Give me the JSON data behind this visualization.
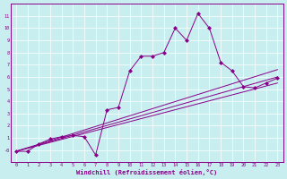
{
  "xlabel": "Windchill (Refroidissement éolien,°C)",
  "background_color": "#c8eef0",
  "line_color": "#880088",
  "x_data": [
    0,
    1,
    2,
    3,
    4,
    5,
    6,
    7,
    8,
    9,
    10,
    11,
    12,
    13,
    14,
    15,
    16,
    17,
    18,
    19,
    20,
    21,
    22,
    23
  ],
  "y_main": [
    -0.1,
    -0.1,
    0.5,
    0.9,
    1.1,
    1.2,
    1.1,
    -0.4,
    3.3,
    3.5,
    6.5,
    7.7,
    7.7,
    8.0,
    10.0,
    9.0,
    11.2,
    10.0,
    7.2,
    6.5,
    5.2,
    5.1,
    5.5,
    5.9
  ],
  "reg_line1_x": [
    0,
    23
  ],
  "reg_line1_y": [
    -0.1,
    6.6
  ],
  "reg_line2_x": [
    0,
    23
  ],
  "reg_line2_y": [
    -0.1,
    5.5
  ],
  "reg_line3_x": [
    0,
    23
  ],
  "reg_line3_y": [
    -0.1,
    6.0
  ],
  "ylim": [
    -1.0,
    12.0
  ],
  "xlim": [
    -0.5,
    23.5
  ],
  "yticks": [
    0,
    1,
    2,
    3,
    4,
    5,
    6,
    7,
    8,
    9,
    10,
    11
  ],
  "ytick_labels": [
    "-0",
    "1",
    "2",
    "3",
    "4",
    "5",
    "6",
    "7",
    "8",
    "9",
    "10",
    "11"
  ],
  "xticks": [
    0,
    1,
    2,
    3,
    4,
    5,
    6,
    7,
    8,
    9,
    10,
    11,
    12,
    13,
    14,
    15,
    16,
    17,
    18,
    19,
    20,
    21,
    22,
    23
  ],
  "xtick_labels": [
    "0",
    "1",
    "2",
    "3",
    "4",
    "5",
    "6",
    "7",
    "8",
    "9",
    "10",
    "11",
    "12",
    "13",
    "14",
    "15",
    "16",
    "17",
    "18",
    "19",
    "20",
    "21",
    "22",
    "23"
  ]
}
